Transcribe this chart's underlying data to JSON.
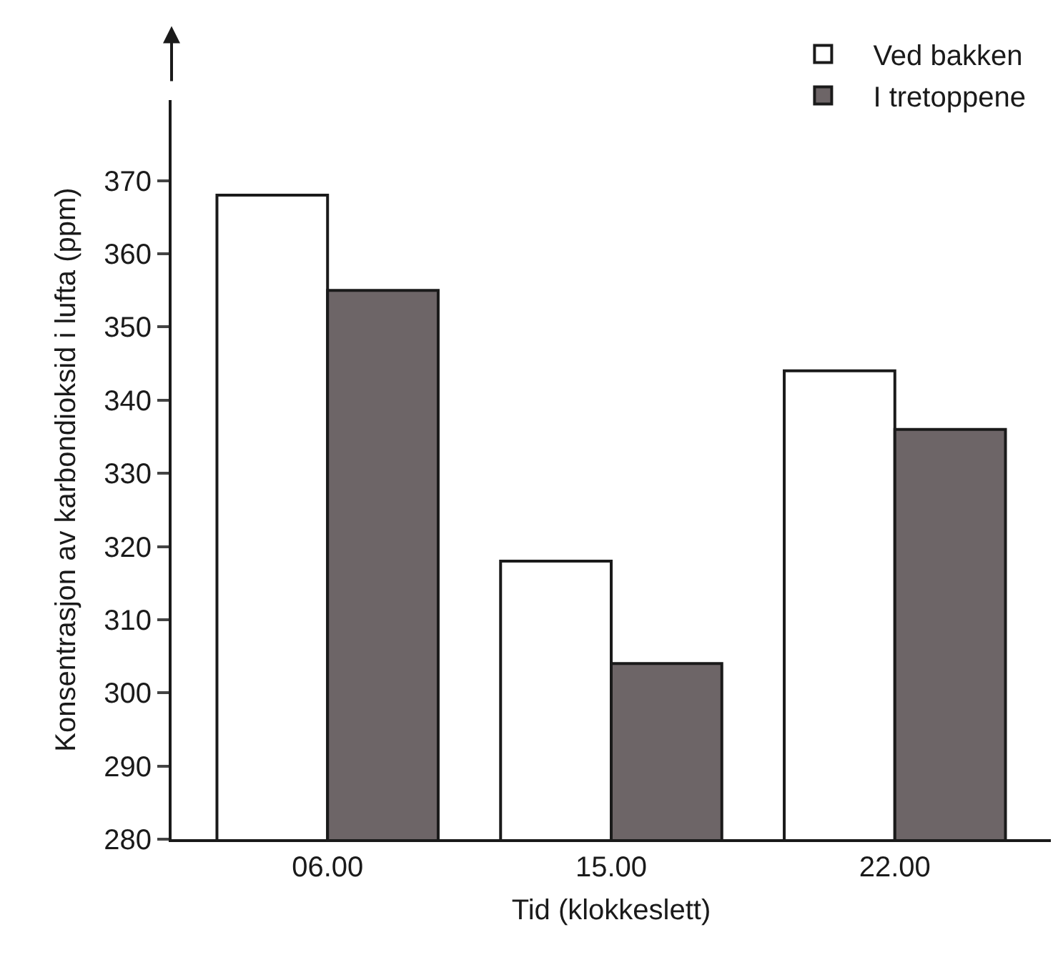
{
  "chart_data": {
    "type": "bar",
    "xlabel": "Tid (klokkeslett)",
    "ylabel": "Konsentrasjon av karbondioksid i lufta (ppm)",
    "categories": [
      "06.00",
      "15.00",
      "22.00"
    ],
    "series": [
      {
        "name": "Ved bakken",
        "color": "#ffffff",
        "values": [
          368,
          318,
          344
        ]
      },
      {
        "name": "I tretoppene",
        "color": "#6d6567",
        "values": [
          355,
          304,
          336
        ]
      }
    ],
    "ylim": [
      280,
      381
    ],
    "yticks": [
      280,
      290,
      300,
      310,
      320,
      330,
      340,
      350,
      360,
      370
    ],
    "grid": false,
    "legend": "top right"
  }
}
